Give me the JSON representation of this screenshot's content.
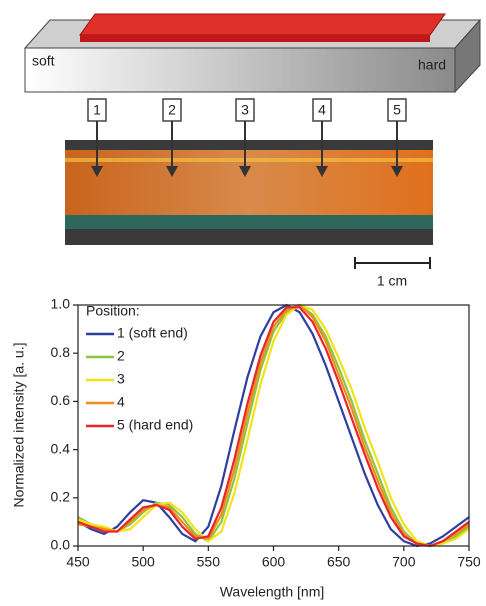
{
  "figure": {
    "gradient_labels": [
      "soft",
      "hard"
    ],
    "position_markers": [
      "1",
      "2",
      "3",
      "4",
      "5"
    ],
    "scale_bar": "1 cm"
  },
  "chart_data": {
    "type": "line",
    "xlabel": "Wavelength [nm]",
    "ylabel": "Normalized intensity [a. u.]",
    "legend_title": "Position:",
    "legend": "upper left",
    "x": [
      450,
      460,
      470,
      480,
      490,
      500,
      510,
      520,
      530,
      540,
      550,
      560,
      570,
      580,
      590,
      600,
      610,
      620,
      630,
      640,
      650,
      660,
      670,
      680,
      690,
      700,
      710,
      720,
      730,
      740,
      750
    ],
    "series": [
      {
        "name": "1 (soft end)",
        "color": "#2e3fa0",
        "values": [
          0.1,
          0.07,
          0.05,
          0.08,
          0.14,
          0.19,
          0.18,
          0.12,
          0.05,
          0.02,
          0.08,
          0.25,
          0.48,
          0.7,
          0.87,
          0.97,
          1.0,
          0.97,
          0.88,
          0.75,
          0.6,
          0.45,
          0.3,
          0.17,
          0.07,
          0.02,
          0.0,
          0.01,
          0.04,
          0.08,
          0.12
        ]
      },
      {
        "name": "2",
        "color": "#8cc63f",
        "values": [
          0.12,
          0.09,
          0.07,
          0.06,
          0.09,
          0.14,
          0.18,
          0.17,
          0.12,
          0.05,
          0.02,
          0.1,
          0.28,
          0.51,
          0.73,
          0.89,
          0.97,
          1.0,
          0.96,
          0.87,
          0.74,
          0.6,
          0.44,
          0.3,
          0.16,
          0.06,
          0.01,
          0.0,
          0.01,
          0.04,
          0.08
        ]
      },
      {
        "name": "3",
        "color": "#f2e21a",
        "values": [
          0.11,
          0.09,
          0.08,
          0.06,
          0.07,
          0.12,
          0.17,
          0.18,
          0.14,
          0.07,
          0.02,
          0.06,
          0.22,
          0.44,
          0.67,
          0.85,
          0.96,
          1.0,
          0.98,
          0.9,
          0.78,
          0.65,
          0.49,
          0.35,
          0.2,
          0.09,
          0.02,
          0.0,
          0.01,
          0.03,
          0.07
        ]
      },
      {
        "name": "4",
        "color": "#f08c1e",
        "values": [
          0.09,
          0.08,
          0.07,
          0.06,
          0.1,
          0.15,
          0.17,
          0.16,
          0.1,
          0.04,
          0.03,
          0.13,
          0.32,
          0.55,
          0.76,
          0.91,
          0.98,
          1.0,
          0.95,
          0.85,
          0.71,
          0.57,
          0.41,
          0.27,
          0.14,
          0.05,
          0.01,
          0.0,
          0.02,
          0.05,
          0.09
        ]
      },
      {
        "name": "5 (hard end)",
        "color": "#e8262a",
        "values": [
          0.1,
          0.08,
          0.06,
          0.06,
          0.11,
          0.16,
          0.17,
          0.15,
          0.08,
          0.03,
          0.04,
          0.16,
          0.36,
          0.59,
          0.79,
          0.93,
          0.99,
          0.99,
          0.93,
          0.82,
          0.68,
          0.53,
          0.38,
          0.24,
          0.12,
          0.04,
          0.01,
          0.0,
          0.02,
          0.06,
          0.1
        ]
      }
    ],
    "xlim": [
      450,
      750
    ],
    "xticks": [
      450,
      500,
      550,
      600,
      650,
      700,
      750
    ],
    "ylim": [
      0,
      1
    ],
    "yticks": [
      {
        "value": 0,
        "label": "0.0"
      },
      0.2,
      0.4,
      0.6,
      0.8,
      {
        "value": 1,
        "label": "1.0"
      }
    ]
  }
}
